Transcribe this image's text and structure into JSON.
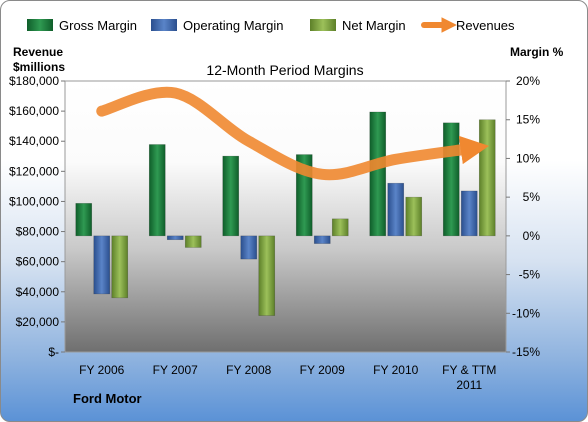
{
  "chart_data": {
    "type": "bar",
    "title": "12-Month Period Margins",
    "categories": [
      "FY 2006",
      "FY 2007",
      "FY 2008",
      "FY 2009",
      "FY 2010",
      "FY & TTM 2011"
    ],
    "series": [
      {
        "name": "Gross Margin",
        "axis": "right",
        "values": [
          4.2,
          11.8,
          10.3,
          10.5,
          16.0,
          14.6
        ],
        "color": "#1e7a3c"
      },
      {
        "name": "Operating Margin",
        "axis": "right",
        "values": [
          -7.5,
          -0.5,
          -3.0,
          -1.0,
          6.8,
          5.8
        ],
        "color": "#3d64a8"
      },
      {
        "name": "Net Margin",
        "axis": "right",
        "values": [
          -8.0,
          -1.5,
          -10.3,
          2.2,
          5.0,
          15.0
        ],
        "color": "#7aa13c"
      },
      {
        "name": "Revenues",
        "axis": "left",
        "type": "line",
        "values": [
          160000,
          172000,
          140000,
          118000,
          128000,
          135000
        ],
        "color": "#f08830"
      }
    ],
    "y_left": {
      "label": [
        "Revenue",
        "$millions"
      ],
      "range": [
        0,
        180000
      ],
      "ticks": [
        "$-",
        "$20,000",
        "$40,000",
        "$60,000",
        "$80,000",
        "$100,000",
        "$120,000",
        "$140,000",
        "$160,000",
        "$180,000"
      ]
    },
    "y_right": {
      "label": "Margin %",
      "range": [
        -15,
        20
      ],
      "ticks": [
        "-15%",
        "-10%",
        "-5%",
        "0%",
        "5%",
        "10%",
        "15%",
        "20%"
      ]
    },
    "x_labels": [
      [
        "FY 2006"
      ],
      [
        "FY 2007"
      ],
      [
        "FY 2008"
      ],
      [
        "FY 2009"
      ],
      [
        "FY 2010"
      ],
      [
        "FY & TTM",
        "2011"
      ]
    ],
    "legend_position": "top",
    "grid": false,
    "brand_label": "Ford Motor"
  }
}
